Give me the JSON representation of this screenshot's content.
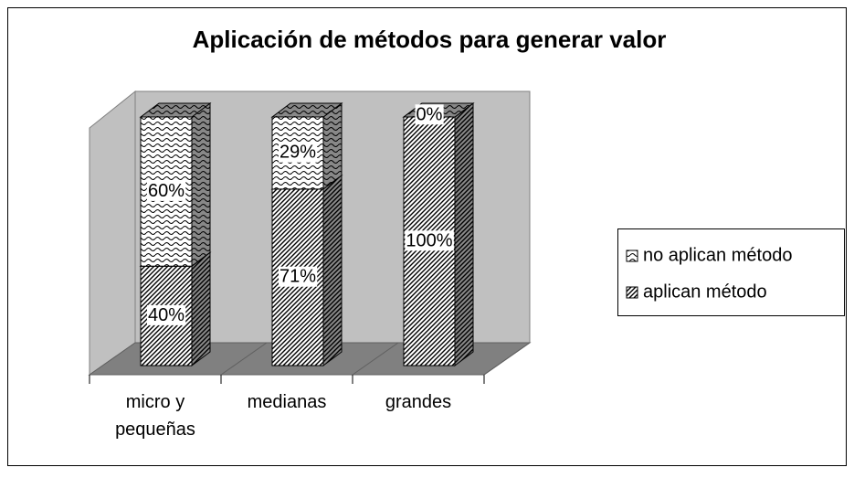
{
  "chart_data": {
    "type": "bar",
    "stacked": true,
    "title": "Aplicación de métodos para generar valor",
    "categories": [
      "micro y pequeñas",
      "medianas",
      "grandes"
    ],
    "series": [
      {
        "name": "aplican método",
        "color": "#000000",
        "pattern": "hatch",
        "values": [
          40,
          71,
          100
        ],
        "value_labels": [
          "40%",
          "71%",
          "100%"
        ]
      },
      {
        "name": "no aplican método",
        "color": "#000000",
        "pattern": "wave",
        "values": [
          60,
          29,
          0
        ],
        "value_labels": [
          "60%",
          "29%",
          "0%"
        ]
      }
    ],
    "legend": "right"
  }
}
